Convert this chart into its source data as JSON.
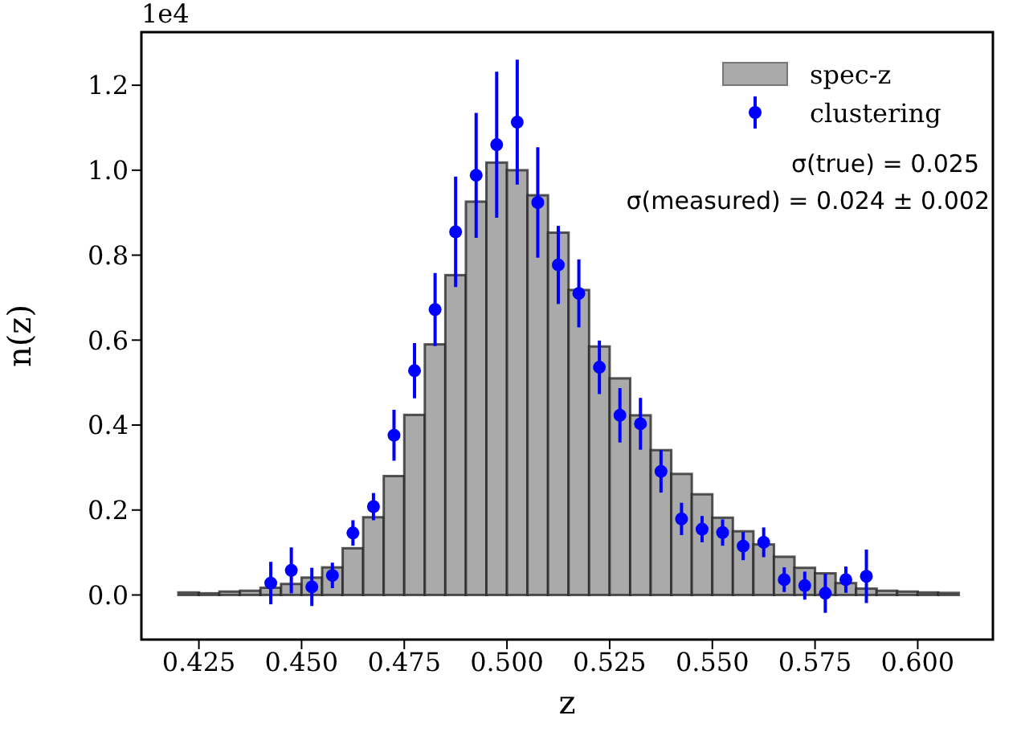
{
  "chart_data": {
    "type": "histogram",
    "xlabel": "z",
    "ylabel": "n(z)",
    "annotations": [
      "1e4",
      "σ(true) = 0.025",
      "σ(measured) = 0.024 ± 0.002"
    ],
    "xlim": [
      0.411,
      0.6183
    ],
    "ylim": [
      -0.105,
      1.325
    ],
    "xticks": [
      {
        "value": 0.425,
        "label": "0.425"
      },
      {
        "value": 0.45,
        "label": "0.450"
      },
      {
        "value": 0.475,
        "label": "0.475"
      },
      {
        "value": 0.5,
        "label": "0.500"
      },
      {
        "value": 0.525,
        "label": "0.525"
      },
      {
        "value": 0.55,
        "label": "0.550"
      },
      {
        "value": 0.575,
        "label": "0.575"
      },
      {
        "value": 0.6,
        "label": "0.600"
      }
    ],
    "yticks": [
      {
        "value": 0,
        "label": "0.0"
      },
      {
        "value": 0.2,
        "label": "0.2"
      },
      {
        "value": 0.4,
        "label": "0.4"
      },
      {
        "value": 0.6,
        "label": "0.6"
      },
      {
        "value": 0.8,
        "label": "0.8"
      },
      {
        "value": 1.0,
        "label": "1.0"
      },
      {
        "value": 1.2,
        "label": "1.2"
      }
    ],
    "grid": false,
    "legend": "top right",
    "marker": "circle",
    "series": [
      {
        "type": "histogram",
        "name": "spec-z",
        "color": "#aaaaaa",
        "bins": [
          0.42,
          0.425,
          0.43,
          0.435,
          0.44,
          0.445,
          0.45,
          0.455,
          0.46,
          0.465,
          0.47,
          0.475,
          0.48,
          0.485,
          0.49,
          0.495,
          0.5,
          0.505,
          0.51,
          0.515,
          0.52,
          0.525,
          0.53,
          0.535,
          0.54,
          0.545,
          0.55,
          0.555,
          0.56,
          0.565,
          0.57,
          0.575,
          0.58,
          0.585,
          0.59,
          0.595,
          0.6,
          0.605,
          0.61
        ],
        "values": [
          0.006,
          0.004,
          0.008,
          0.01,
          0.017,
          0.026,
          0.041,
          0.065,
          0.11,
          0.183,
          0.28,
          0.424,
          0.59,
          0.753,
          0.926,
          1.018,
          1.0,
          0.941,
          0.853,
          0.718,
          0.585,
          0.51,
          0.423,
          0.341,
          0.285,
          0.237,
          0.182,
          0.15,
          0.119,
          0.09,
          0.064,
          0.051,
          0.028,
          0.015,
          0.01,
          0.008,
          0.006,
          0.005
        ]
      },
      {
        "type": "scatter",
        "name": "clustering",
        "color": "#0000ff",
        "x": [
          0.4425,
          0.4475,
          0.4525,
          0.4575,
          0.4625,
          0.4675,
          0.4725,
          0.4775,
          0.4825,
          0.4875,
          0.4925,
          0.4975,
          0.5025,
          0.5075,
          0.5125,
          0.5175,
          0.5225,
          0.5275,
          0.5325,
          0.5375,
          0.5425,
          0.5475,
          0.5525,
          0.5575,
          0.5625,
          0.5675,
          0.5725,
          0.5775,
          0.5825,
          0.5875
        ],
        "values": [
          0.028,
          0.058,
          0.019,
          0.046,
          0.146,
          0.208,
          0.376,
          0.528,
          0.672,
          0.855,
          0.988,
          1.06,
          1.113,
          0.924,
          0.777,
          0.71,
          0.536,
          0.423,
          0.403,
          0.291,
          0.179,
          0.155,
          0.147,
          0.115,
          0.124,
          0.036,
          0.022,
          0.004,
          0.036,
          0.044
        ],
        "errors": [
          0.05,
          0.054,
          0.045,
          0.03,
          0.03,
          0.032,
          0.06,
          0.065,
          0.086,
          0.13,
          0.147,
          0.172,
          0.147,
          0.13,
          0.092,
          0.08,
          0.063,
          0.064,
          0.061,
          0.05,
          0.038,
          0.031,
          0.031,
          0.033,
          0.035,
          0.029,
          0.033,
          0.046,
          0.031,
          0.063
        ]
      }
    ]
  }
}
